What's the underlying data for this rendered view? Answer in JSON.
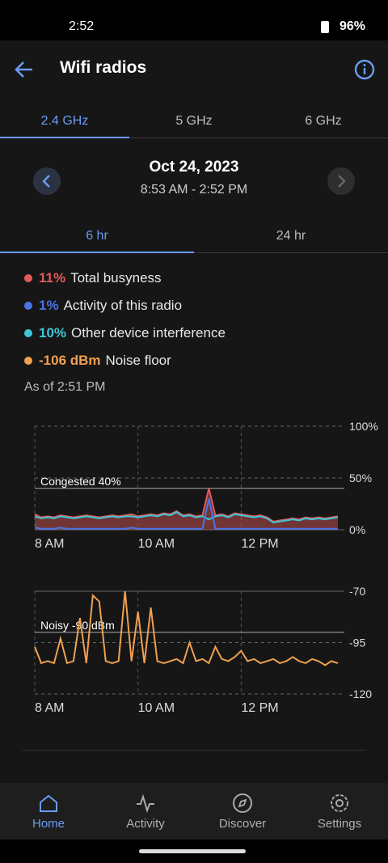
{
  "status_bar": {
    "time": "2:52",
    "battery": "96%"
  },
  "header": {
    "title": "Wifi radios"
  },
  "band_tabs": [
    "2.4 GHz",
    "5 GHz",
    "6 GHz"
  ],
  "date": {
    "day": "Oct 24, 2023",
    "range": "8:53 AM - 2:52 PM"
  },
  "range_tabs": [
    "6 hr",
    "24 hr"
  ],
  "legend": [
    {
      "value": "11%",
      "label": "Total busyness",
      "color": "#e05a5a"
    },
    {
      "value": "1%",
      "label": "Activity of this radio",
      "color": "#4a74e8"
    },
    {
      "value": "10%",
      "label": "Other device interference",
      "color": "#3ec6d8"
    },
    {
      "value": "-106 dBm",
      "label": "Noise floor",
      "color": "#f0a050"
    }
  ],
  "as_of": "As of 2:51 PM",
  "chart_data": [
    {
      "type": "line",
      "x": [
        8,
        8.125,
        8.25,
        8.375,
        8.5,
        8.625,
        8.75,
        8.875,
        9,
        9.125,
        9.25,
        9.375,
        9.5,
        9.625,
        9.75,
        9.875,
        10,
        10.125,
        10.25,
        10.375,
        10.5,
        10.625,
        10.75,
        10.875,
        11,
        11.125,
        11.25,
        11.375,
        11.5,
        11.625,
        11.75,
        11.875,
        12,
        12.125,
        12.25,
        12.375,
        12.5,
        12.625,
        12.75,
        12.875,
        13,
        13.125,
        13.25,
        13.375,
        13.5,
        13.625,
        13.75,
        13.875
      ],
      "series": [
        {
          "name": "Total busyness",
          "color": "#e05a5a",
          "area": true,
          "values": [
            15,
            12,
            13,
            12,
            14,
            13,
            12,
            13,
            14,
            13,
            12,
            13,
            14,
            13,
            14,
            15,
            13,
            14,
            15,
            14,
            16,
            15,
            18,
            14,
            15,
            13,
            14,
            40,
            14,
            15,
            13,
            16,
            15,
            14,
            13,
            14,
            12,
            8,
            9,
            10,
            11,
            10,
            12,
            11,
            12,
            11,
            12,
            13
          ]
        },
        {
          "name": "Other device interference",
          "color": "#3ec6d8",
          "area": false,
          "values": [
            13,
            11,
            12,
            11,
            13,
            12,
            11,
            12,
            13,
            12,
            11,
            12,
            13,
            12,
            13,
            13,
            12,
            13,
            14,
            13,
            15,
            14,
            17,
            13,
            14,
            12,
            13,
            10,
            13,
            14,
            12,
            15,
            14,
            13,
            12,
            13,
            11,
            7,
            8,
            9,
            10,
            9,
            11,
            10,
            11,
            10,
            11,
            12
          ]
        },
        {
          "name": "Activity of this radio",
          "color": "#4a74e8",
          "area": false,
          "values": [
            2,
            1,
            1,
            1,
            2,
            1,
            1,
            1,
            1,
            1,
            1,
            1,
            1,
            1,
            1,
            2,
            1,
            1,
            1,
            1,
            1,
            1,
            1,
            1,
            1,
            1,
            1,
            30,
            1,
            1,
            1,
            1,
            1,
            1,
            1,
            1,
            1,
            1,
            1,
            1,
            1,
            1,
            1,
            1,
            1,
            1,
            1,
            1
          ]
        }
      ],
      "xlim": [
        8,
        14
      ],
      "xticks": [
        {
          "value": 8,
          "label": "8 AM"
        },
        {
          "value": 10,
          "label": "10 AM"
        },
        {
          "value": 12,
          "label": "12 PM"
        }
      ],
      "ylim": [
        0,
        100
      ],
      "yticks": [
        {
          "value": 0,
          "label": "0%"
        },
        {
          "value": 50,
          "label": "50%"
        },
        {
          "value": 100,
          "label": "100%"
        }
      ],
      "reference": {
        "value": 40,
        "label": "Congested 40%"
      },
      "grid": true
    },
    {
      "type": "line",
      "x": [
        8,
        8.125,
        8.25,
        8.375,
        8.5,
        8.625,
        8.75,
        8.875,
        9,
        9.125,
        9.25,
        9.375,
        9.5,
        9.625,
        9.75,
        9.875,
        10,
        10.125,
        10.25,
        10.375,
        10.5,
        10.625,
        10.75,
        10.875,
        11,
        11.125,
        11.25,
        11.375,
        11.5,
        11.625,
        11.75,
        11.875,
        12,
        12.125,
        12.25,
        12.375,
        12.5,
        12.625,
        12.75,
        12.875,
        13,
        13.125,
        13.25,
        13.375,
        13.5,
        13.625,
        13.75,
        13.875
      ],
      "series": [
        {
          "name": "Noise floor",
          "color": "#f0a050",
          "area": false,
          "values": [
            -97,
            -105,
            -104,
            -105,
            -93,
            -105,
            -104,
            -83,
            -105,
            -72,
            -75,
            -104,
            -105,
            -104,
            -70,
            -104,
            -80,
            -105,
            -78,
            -104,
            -105,
            -104,
            -103,
            -105,
            -95,
            -104,
            -103,
            -105,
            -97,
            -103,
            -104,
            -102,
            -99,
            -104,
            -103,
            -105,
            -104,
            -103,
            -105,
            -104,
            -102,
            -104,
            -105,
            -103,
            -104,
            -106,
            -104,
            -105
          ]
        }
      ],
      "xlim": [
        8,
        14
      ],
      "xticks": [
        {
          "value": 8,
          "label": "8 AM"
        },
        {
          "value": 10,
          "label": "10 AM"
        },
        {
          "value": 12,
          "label": "12 PM"
        }
      ],
      "ylim": [
        -120,
        -70
      ],
      "yticks": [
        -70,
        -95,
        -120
      ],
      "reference": {
        "value": -90,
        "label": "Noisy -90 dBm"
      },
      "grid": true
    }
  ],
  "nav": [
    "Home",
    "Activity",
    "Discover",
    "Settings"
  ]
}
